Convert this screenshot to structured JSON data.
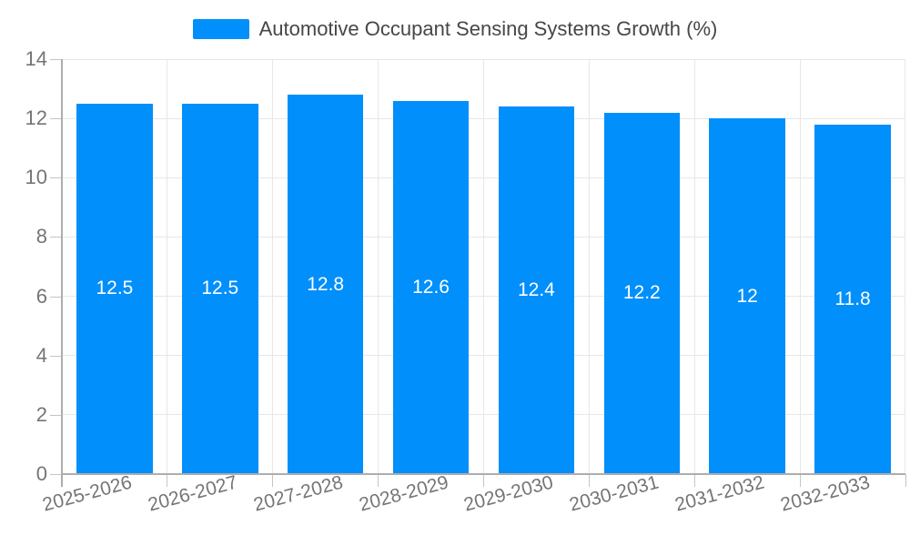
{
  "legend": {
    "label": "Automotive Occupant Sensing Systems Growth (%)"
  },
  "chart_data": {
    "type": "bar",
    "title": "",
    "categories": [
      "2025-2026",
      "2026-2027",
      "2027-2028",
      "2028-2029",
      "2029-2030",
      "2030-2031",
      "2031-2032",
      "2032-2033"
    ],
    "series": [
      {
        "name": "Automotive Occupant Sensing Systems Growth (%)",
        "values": [
          12.5,
          12.5,
          12.8,
          12.6,
          12.4,
          12.2,
          12,
          11.8
        ]
      }
    ],
    "value_labels": [
      "12.5",
      "12.5",
      "12.8",
      "12.6",
      "12.4",
      "12.2",
      "12",
      "11.8"
    ],
    "xlabel": "",
    "ylabel": "",
    "ylim": [
      0,
      14
    ],
    "yticks": [
      0,
      2,
      4,
      6,
      8,
      10,
      12,
      14
    ],
    "grid": true,
    "legend_position": "top",
    "x_label_rotation_deg": -15,
    "colors": {
      "bar": "#008FFB",
      "grid": "#e7e7e7",
      "axis": "#adadad",
      "tick": "#c4c4c4",
      "axis_label": "#757575",
      "legend_text": "#44474a",
      "data_label": "#ffffff",
      "background": "#ffffff"
    }
  }
}
